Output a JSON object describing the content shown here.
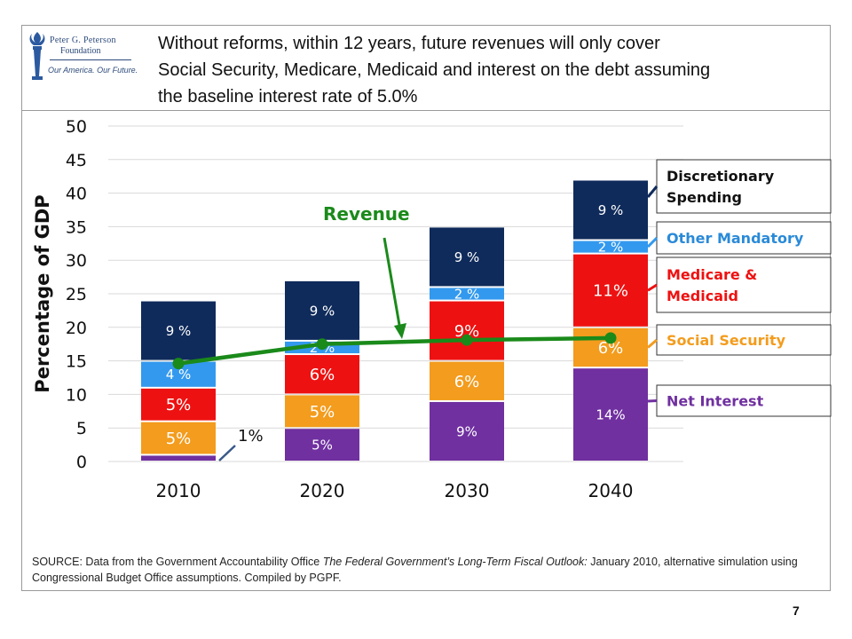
{
  "slide": {
    "title": "Without reforms, within 12 years, future revenues will only cover\nSocial Security, Medicare, Medicaid and interest on the debt assuming\nthe baseline interest rate of 5.0%",
    "logo": {
      "line1": "Peter G. Peterson",
      "line2": "Foundation",
      "tagline": "Our America. Our Future."
    },
    "source": {
      "prefix": "SOURCE: Data from the Government Accountability Office ",
      "publication": "The Federal Government’s Long-Term Fiscal Outlook:",
      "suffix": " January 2010, alternative simulation using Congressional Budget Office assumptions. Compiled by PGPF."
    },
    "page_number": "7"
  },
  "chart_data": {
    "type": "bar",
    "stacked": true,
    "ylabel": "Percentage of GDP",
    "ylim": [
      0,
      50
    ],
    "yticks": [
      0,
      5,
      10,
      15,
      20,
      25,
      30,
      35,
      40,
      45,
      50
    ],
    "grid": true,
    "legend_position": "right",
    "categories": [
      "2010",
      "2020",
      "2030",
      "2040"
    ],
    "series": [
      {
        "name": "Net Interest",
        "color": "#7030a0",
        "values": [
          1,
          5,
          9,
          14
        ],
        "labels": [
          "1%",
          "5%",
          "9%",
          "14%"
        ]
      },
      {
        "name": "Social Security",
        "color": "#f39c1d",
        "values": [
          5,
          5,
          6,
          6
        ],
        "labels": [
          "5%",
          "5%",
          "6%",
          "6%"
        ]
      },
      {
        "name": "Medicare & Medicaid",
        "color": "#ee1111",
        "values": [
          5,
          6,
          9,
          11
        ],
        "labels": [
          "5%",
          "6%",
          "9%",
          "11%"
        ]
      },
      {
        "name": "Other Mandatory",
        "color": "#3399ee",
        "values": [
          4,
          2,
          2,
          2
        ],
        "labels": [
          "4 %",
          "2 %",
          "2 %",
          "2 %"
        ]
      },
      {
        "name": "Discretionary Spending",
        "color": "#0f2b5b",
        "values": [
          9,
          9,
          9,
          9
        ],
        "labels": [
          "9 %",
          "9 %",
          "9 %",
          "9 %"
        ]
      }
    ],
    "revenue": {
      "name": "Revenue",
      "color": "#1a8a1a",
      "values": [
        14.6,
        17.5,
        18.1,
        18.4
      ]
    }
  }
}
